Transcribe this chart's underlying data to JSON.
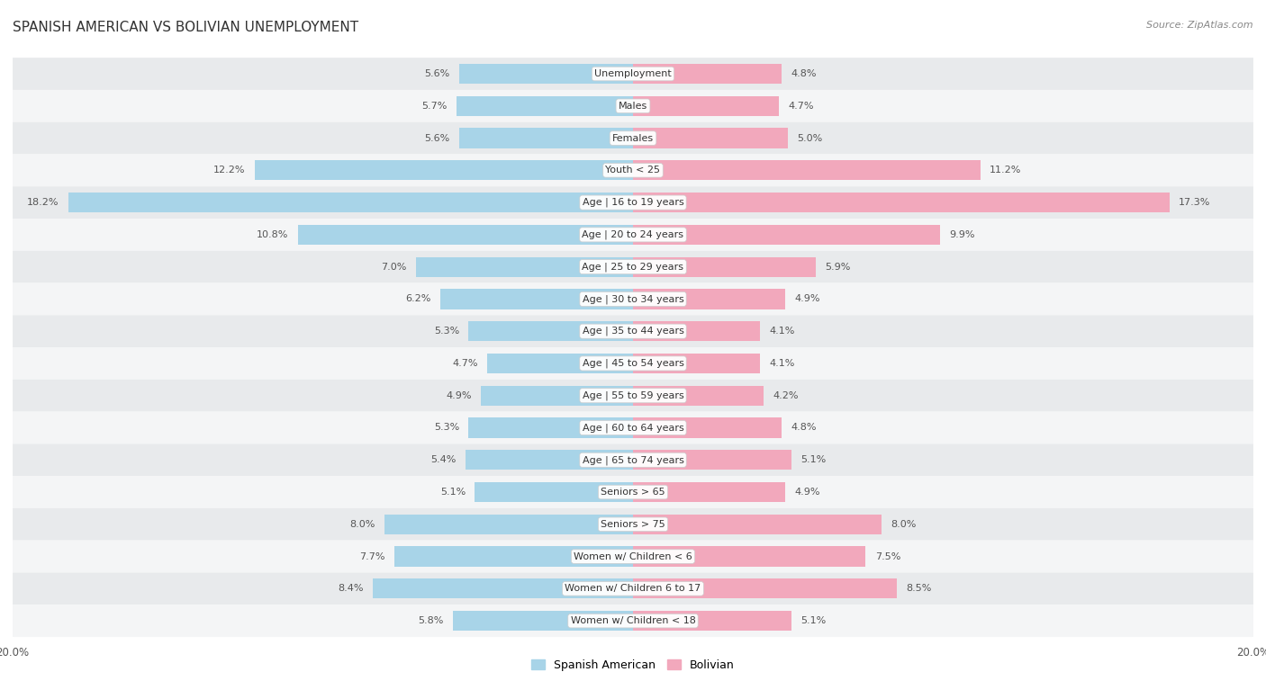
{
  "title": "SPANISH AMERICAN VS BOLIVIAN UNEMPLOYMENT",
  "source": "Source: ZipAtlas.com",
  "categories": [
    "Unemployment",
    "Males",
    "Females",
    "Youth < 25",
    "Age | 16 to 19 years",
    "Age | 20 to 24 years",
    "Age | 25 to 29 years",
    "Age | 30 to 34 years",
    "Age | 35 to 44 years",
    "Age | 45 to 54 years",
    "Age | 55 to 59 years",
    "Age | 60 to 64 years",
    "Age | 65 to 74 years",
    "Seniors > 65",
    "Seniors > 75",
    "Women w/ Children < 6",
    "Women w/ Children 6 to 17",
    "Women w/ Children < 18"
  ],
  "spanish_american": [
    5.6,
    5.7,
    5.6,
    12.2,
    18.2,
    10.8,
    7.0,
    6.2,
    5.3,
    4.7,
    4.9,
    5.3,
    5.4,
    5.1,
    8.0,
    7.7,
    8.4,
    5.8
  ],
  "bolivian": [
    4.8,
    4.7,
    5.0,
    11.2,
    17.3,
    9.9,
    5.9,
    4.9,
    4.1,
    4.1,
    4.2,
    4.8,
    5.1,
    4.9,
    8.0,
    7.5,
    8.5,
    5.1
  ],
  "color_spanish": "#a8d4e8",
  "color_bolivian": "#f2a8bc",
  "bar_height": 0.62,
  "xlim": 20.0,
  "bg_color": "#ffffff",
  "row_even_color": "#e8eaec",
  "row_odd_color": "#f4f5f6",
  "label_fontsize": 8.5,
  "title_fontsize": 11,
  "legend_fontsize": 9,
  "value_fontsize": 8.0,
  "cat_label_fontsize": 8.0
}
